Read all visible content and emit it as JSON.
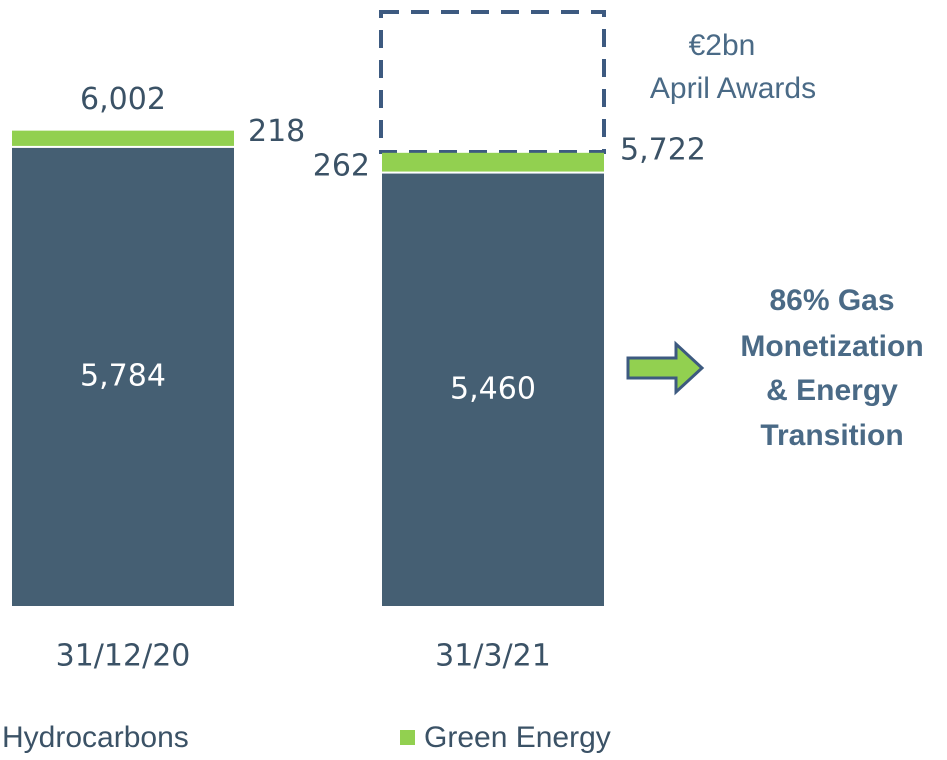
{
  "chart_data": {
    "type": "bar",
    "stacked": true,
    "categories": [
      "31/12/20",
      "31/3/21"
    ],
    "series": [
      {
        "name": "Hydrocarbons",
        "color": "#455f73",
        "values": [
          5784,
          5460
        ],
        "value_labels": [
          "5,784",
          "5,460"
        ]
      },
      {
        "name": "Green Energy",
        "color": "#92d050",
        "values": [
          218,
          262
        ],
        "value_labels": [
          "218",
          "262"
        ]
      }
    ],
    "totals": [
      6002,
      5722
    ],
    "total_labels": [
      "6,002",
      "5,722"
    ],
    "annotations": {
      "award_amount": "€2bn",
      "award_label": "April Awards",
      "note_lines": [
        "86% Gas",
        "Monetization",
        "& Energy",
        "Transition"
      ]
    }
  }
}
